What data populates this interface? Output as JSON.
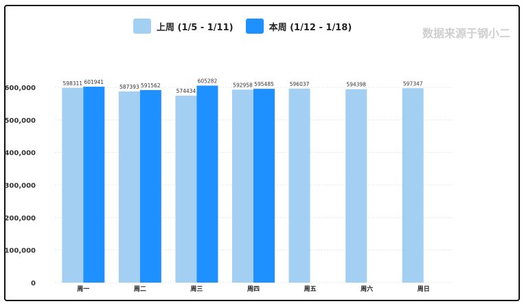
{
  "source_note": "数据来源于钢小二",
  "chart_data": {
    "type": "bar",
    "categories": [
      "周一",
      "周二",
      "周三",
      "周四",
      "周五",
      "周六",
      "周日"
    ],
    "series": [
      {
        "name": "上周 (1/5 - 1/11)",
        "color": "#a3cff3",
        "values": [
          598311,
          587393,
          574434,
          592958,
          596037,
          594398,
          597347
        ]
      },
      {
        "name": "本周 (1/12 - 1/18)",
        "color": "#1e90ff",
        "values": [
          601941,
          591562,
          605282,
          595485,
          null,
          null,
          null
        ]
      }
    ],
    "yticks": [
      "0",
      "100,000",
      "200,000",
      "300,000",
      "400,000",
      "500,000",
      "600,000"
    ],
    "ylim": [
      0,
      640000
    ],
    "grid": true,
    "legend": "top-center",
    "title": "",
    "xlabel": "",
    "ylabel": ""
  }
}
